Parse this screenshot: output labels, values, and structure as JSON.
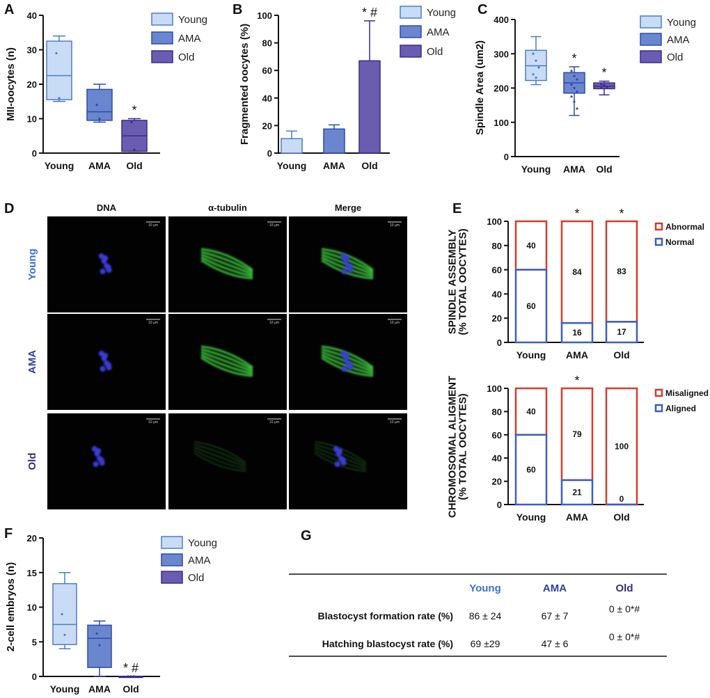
{
  "colors": {
    "young_fill": "#c9dcf5",
    "young_stroke": "#4e7cc4",
    "ama_fill": "#6a86cf",
    "ama_stroke": "#2e4aa8",
    "old_fill": "#6a5cb0",
    "old_stroke": "#3a2b8a",
    "abnormal": "#d83a2e",
    "normal": "#3a5fbf",
    "young_text": "#3f6fd0",
    "ama_text": "#2e3fa0",
    "old_text": "#3b2a7a",
    "fluor_blue": "#3a3ad8",
    "fluor_green": "#3cc43c"
  },
  "chart_data": [
    {
      "id": "A",
      "type": "box",
      "letter": "A",
      "ylabel": "MII-oocytes (n)",
      "ylim": [
        0,
        40
      ],
      "yticks": [
        "0",
        "10",
        "20",
        "30",
        "40"
      ],
      "categories": [
        "Young",
        "AMA",
        "Old"
      ],
      "boxes": [
        {
          "min": 15,
          "q1": 15.5,
          "median": 22.5,
          "q3": 32.5,
          "max": 34,
          "points": [
            29,
            16
          ]
        },
        {
          "min": 9,
          "q1": 9.5,
          "median": 12,
          "q3": 18.5,
          "max": 20,
          "points": [
            14,
            10
          ]
        },
        {
          "min": 0.5,
          "q1": 0.5,
          "median": 5,
          "q3": 9.5,
          "max": 10,
          "points": [
            9,
            1
          ]
        }
      ],
      "annotations": [
        "",
        "",
        "*"
      ],
      "legend": [
        "Young",
        "AMA",
        "Old"
      ]
    },
    {
      "id": "B",
      "type": "bar",
      "letter": "B",
      "ylabel": "Fragmented oocytes (%)",
      "ylim": [
        0,
        100
      ],
      "yticks": [
        "0",
        "20",
        "40",
        "60",
        "80",
        "100"
      ],
      "categories": [
        "Young",
        "AMA",
        "Old"
      ],
      "values": [
        10.5,
        17.5,
        67
      ],
      "errors": [
        5.5,
        3,
        29
      ],
      "annotations": [
        "",
        "",
        "*  #"
      ],
      "legend": [
        "Young",
        "AMA",
        "Old"
      ]
    },
    {
      "id": "C",
      "type": "box",
      "letter": "C",
      "ylabel": "Spindle Area (um2)",
      "ylim": [
        0,
        400
      ],
      "yticks": [
        "0",
        "100",
        "200",
        "300",
        "400"
      ],
      "categories": [
        "Young",
        "AMA",
        "Old"
      ],
      "boxes": [
        {
          "min": 210,
          "q1": 222,
          "median": 265,
          "q3": 310,
          "max": 350,
          "points": [
            300,
            280,
            260,
            240,
            230
          ]
        },
        {
          "min": 120,
          "q1": 185,
          "median": 215,
          "q3": 245,
          "max": 262,
          "points": [
            250,
            235,
            225,
            210,
            200,
            190,
            175,
            160,
            140
          ]
        },
        {
          "min": 180,
          "q1": 198,
          "median": 205,
          "q3": 215,
          "max": 220,
          "points": [
            212,
            208,
            203,
            200
          ]
        }
      ],
      "annotations": [
        "",
        "*",
        "*"
      ],
      "legend": [
        "Young",
        "AMA",
        "Old"
      ]
    },
    {
      "id": "E1",
      "type": "stacked_bar",
      "letter": "E",
      "ylabel_lines": [
        "SPINDLE ASSEMBLY",
        "(% TOTAL OOCYTES)"
      ],
      "ylim": [
        0,
        100
      ],
      "yticks": [
        "0",
        "20",
        "40",
        "60",
        "80",
        "100"
      ],
      "categories": [
        "Young",
        "AMA",
        "Old"
      ],
      "series": [
        {
          "name": "Normal",
          "values": [
            60,
            16,
            17
          ]
        },
        {
          "name": "Abnormal",
          "values": [
            40,
            84,
            83
          ]
        }
      ],
      "annotations": [
        "",
        "*",
        "*"
      ]
    },
    {
      "id": "E2",
      "type": "stacked_bar",
      "letter": "",
      "ylabel_lines": [
        "CHROMOSOMAL ALIGMENT",
        "(% TOTAL OOCYTES)"
      ],
      "ylim": [
        0,
        100
      ],
      "yticks": [
        "0",
        "20",
        "40",
        "60",
        "80",
        "100"
      ],
      "categories": [
        "Young",
        "AMA",
        "Old"
      ],
      "series": [
        {
          "name": "Aligned",
          "values": [
            60,
            21,
            0
          ]
        },
        {
          "name": "Misaligned",
          "values": [
            40,
            79,
            100
          ]
        }
      ],
      "annotations": [
        "",
        "*",
        ""
      ]
    },
    {
      "id": "F",
      "type": "box",
      "letter": "F",
      "ylabel": "2-cell embryos (n)",
      "ylim": [
        0,
        20
      ],
      "yticks": [
        "0",
        "5",
        "10",
        "15",
        "20"
      ],
      "categories": [
        "Young",
        "AMA",
        "Old"
      ],
      "boxes": [
        {
          "min": 4,
          "q1": 4.6,
          "median": 7.5,
          "q3": 13.4,
          "max": 15,
          "points": [
            9,
            6
          ]
        },
        {
          "min": 0,
          "q1": 1.3,
          "median": 5.5,
          "q3": 7.4,
          "max": 8,
          "points": [
            6.2,
            4.5
          ]
        },
        {
          "min": 0,
          "q1": 0,
          "median": 0,
          "q3": 0,
          "max": 0,
          "points": [
            0,
            0,
            0
          ]
        }
      ],
      "annotations": [
        "",
        "",
        "* #"
      ],
      "legend": [
        "Young",
        "AMA",
        "Old"
      ]
    }
  ],
  "panel_d": {
    "letter": "D",
    "columns": [
      "DNA",
      "α-tubulin",
      "Merge"
    ],
    "rows": [
      "Young",
      "AMA",
      "Old"
    ],
    "scale_bar": "10 μm"
  },
  "panel_g": {
    "letter": "G",
    "headers": [
      "Young",
      "AMA",
      "Old"
    ],
    "rows": [
      {
        "label": "Blastocyst formation rate (%)",
        "values": [
          "86 ± 24",
          "67 ± 7",
          "0 ± 0*#"
        ]
      },
      {
        "label": "Hatching blastocyst rate (%)",
        "values": [
          "69 ±29",
          "47 ± 6",
          "0 ± 0*#"
        ]
      }
    ]
  }
}
